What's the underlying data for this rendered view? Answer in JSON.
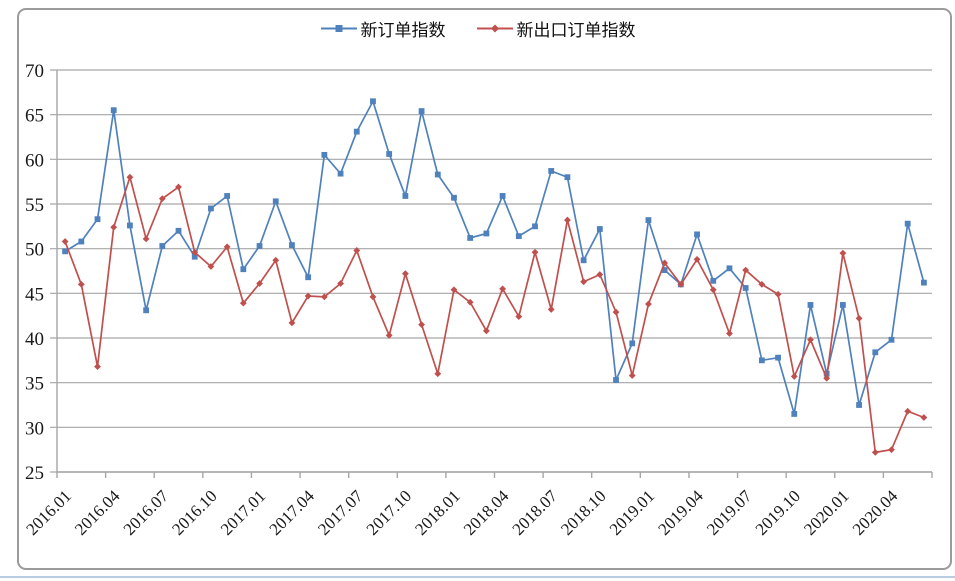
{
  "chart_data": {
    "type": "line",
    "title": "",
    "x": [
      "2016.01",
      "2016.02",
      "2016.03",
      "2016.04",
      "2016.05",
      "2016.06",
      "2016.07",
      "2016.08",
      "2016.09",
      "2016.10",
      "2016.11",
      "2016.12",
      "2017.01",
      "2017.02",
      "2017.03",
      "2017.04",
      "2017.05",
      "2017.06",
      "2017.07",
      "2017.08",
      "2017.09",
      "2017.10",
      "2017.11",
      "2017.12",
      "2018.01",
      "2018.02",
      "2018.03",
      "2018.04",
      "2018.05",
      "2018.06",
      "2018.07",
      "2018.08",
      "2018.09",
      "2018.10",
      "2018.11",
      "2018.12",
      "2019.01",
      "2019.02",
      "2019.03",
      "2019.04",
      "2019.05",
      "2019.06",
      "2019.07",
      "2019.08",
      "2019.09",
      "2019.10",
      "2019.11",
      "2019.12",
      "2020.01",
      "2020.02",
      "2020.03",
      "2020.04",
      "2020.05",
      "2020.06"
    ],
    "x_tick_every": 3,
    "xtick_labels": [
      "2016.01",
      "2016.04",
      "2016.07",
      "2016.10",
      "2017.01",
      "2017.04",
      "2017.07",
      "2017.10",
      "2018.01",
      "2018.04",
      "2018.07",
      "2018.10",
      "2019.01",
      "2019.04",
      "2019.07",
      "2019.10",
      "2020.01",
      "2020.04"
    ],
    "yticks": [
      70,
      65,
      60,
      55,
      50,
      45,
      40,
      35,
      30,
      25
    ],
    "ylim": [
      25,
      70
    ],
    "grid": "horizontal",
    "legend_position": "top-center",
    "series": [
      {
        "name": "新订单指数",
        "color": "#4F81BD",
        "marker": "square",
        "values": [
          49.7,
          50.8,
          53.3,
          65.5,
          52.6,
          43.1,
          50.3,
          52.0,
          49.1,
          54.5,
          55.9,
          47.7,
          50.3,
          55.3,
          50.4,
          46.8,
          60.5,
          58.4,
          63.1,
          66.5,
          60.6,
          55.9,
          65.4,
          58.3,
          55.7,
          51.2,
          51.7,
          55.9,
          51.4,
          52.5,
          58.7,
          58.0,
          48.7,
          52.2,
          35.3,
          39.4,
          53.2,
          47.6,
          46.0,
          51.6,
          46.4,
          47.8,
          45.6,
          37.5,
          37.8,
          31.5,
          43.7,
          36.0,
          43.7,
          32.5,
          38.4,
          39.8,
          52.8,
          46.2
        ]
      },
      {
        "name": "新出口订单指数",
        "color": "#C0504D",
        "marker": "diamond",
        "values": [
          50.8,
          46.0,
          36.8,
          52.4,
          58.0,
          51.1,
          55.6,
          56.9,
          49.6,
          48.0,
          50.2,
          43.9,
          46.1,
          48.7,
          41.7,
          44.7,
          44.6,
          46.1,
          49.8,
          44.6,
          40.3,
          47.2,
          41.5,
          36.0,
          45.4,
          44.0,
          40.8,
          45.5,
          42.4,
          49.6,
          43.2,
          53.2,
          46.3,
          47.1,
          42.9,
          35.8,
          43.8,
          48.4,
          46.0,
          48.8,
          45.4,
          40.5,
          47.6,
          46.0,
          44.9,
          35.7,
          39.8,
          35.5,
          49.5,
          42.2,
          27.2,
          27.5,
          31.8,
          31.1
        ]
      }
    ]
  },
  "colors": {
    "gridline": "#a6a6a6",
    "axis": "#a6a6a6",
    "tick_text": "#1a1a1a",
    "frame_border": "#9b9b9b",
    "bottom_strip": "#b8cce4"
  }
}
